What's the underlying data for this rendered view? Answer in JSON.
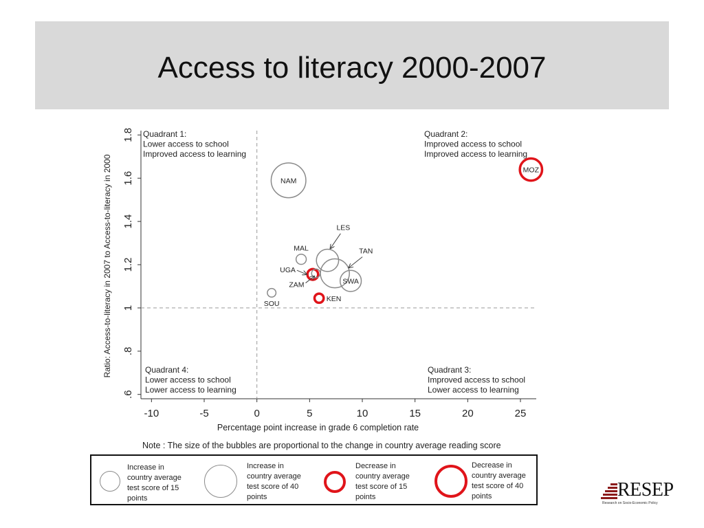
{
  "page": {
    "title": "Access to literacy 2000-2007"
  },
  "colors": {
    "gray_bubble": "#8a8a8a",
    "red_bubble": "#e0141a",
    "axis": "#333333",
    "reference_line": "#9a9a9a",
    "title_bar": "#d9d9d9"
  },
  "chart_data": {
    "type": "scatter",
    "xlabel": "Percentage point increase in grade 6 completion rate",
    "ylabel": "Ratio: Access-to-literacy in 2007 to Access-to-literacy in 2000",
    "xlim": [
      -11,
      26.5
    ],
    "ylim": [
      0.58,
      1.82
    ],
    "x_ticks": [
      -10,
      -5,
      0,
      5,
      10,
      15,
      20,
      25
    ],
    "x_tick_labels": [
      "-10",
      "-5",
      "0",
      "5",
      "10",
      "15",
      "20",
      "25"
    ],
    "y_ticks": [
      0.6,
      0.8,
      1,
      1.2,
      1.4,
      1.6,
      1.8
    ],
    "y_tick_labels": [
      ".6",
      ".8",
      "1",
      "1.2",
      "1.4",
      "1.6",
      "1.8"
    ],
    "reference_lines": {
      "x": 0,
      "y": 1
    },
    "grid": false,
    "quadrants": [
      {
        "lines": [
          "Quadrant 1:",
          "Lower access to school",
          "Improved access to learning"
        ],
        "position": "top-left"
      },
      {
        "lines": [
          "Quadrant 2:",
          "Improved access to school",
          "Improved access to learning"
        ],
        "position": "top-right"
      },
      {
        "lines": [
          "Quadrant 4:",
          "Lower access to school",
          "Lower access to learning"
        ],
        "position": "bottom-left"
      },
      {
        "lines": [
          "Quadrant 3:",
          "Improved access to school",
          "Lower access to learning"
        ],
        "position": "bottom-right"
      }
    ],
    "points": [
      {
        "label": "NAM",
        "x": 3.0,
        "y": 1.59,
        "score_change": 56,
        "direction": "increase",
        "label_pos": "center"
      },
      {
        "label": "MOZ",
        "x": 26.0,
        "y": 1.64,
        "score_change": -32,
        "direction": "decrease",
        "label_pos": "center"
      },
      {
        "label": "MAL",
        "x": 4.2,
        "y": 1.225,
        "score_change": 9,
        "direction": "increase",
        "label_pos": "above"
      },
      {
        "label": "LES",
        "x": 6.7,
        "y": 1.22,
        "score_change": 32,
        "direction": "increase",
        "label_pos": "arrow-above"
      },
      {
        "label": "TAN",
        "x": 7.4,
        "y": 1.16,
        "score_change": 45,
        "direction": "increase",
        "label_pos": "arrow-upper-right"
      },
      {
        "label": "SWA",
        "x": 8.9,
        "y": 1.125,
        "score_change": 30,
        "direction": "increase",
        "label_pos": "center"
      },
      {
        "label": "UGA",
        "x": 5.3,
        "y": 1.155,
        "score_change": -10,
        "direction": "decrease",
        "label_pos": "arrow-left"
      },
      {
        "label": "ZAM",
        "x": 5.6,
        "y": 1.16,
        "score_change": 6,
        "direction": "increase",
        "label_pos": "arrow-lower-left"
      },
      {
        "label": "SOU",
        "x": 1.4,
        "y": 1.07,
        "score_change": 6,
        "direction": "increase",
        "label_pos": "below"
      },
      {
        "label": "KEN",
        "x": 5.9,
        "y": 1.045,
        "score_change": -7,
        "direction": "decrease",
        "label_pos": "right"
      }
    ],
    "note": "Note : The size of the bubbles are proportional to the change in country average reading score"
  },
  "legend": {
    "items": [
      {
        "text": "Increase in\ncountry average\ntest score of 15\npoints",
        "kind": "increase-15"
      },
      {
        "text": "Increase in\ncountry average\ntest score of 40\npoints",
        "kind": "increase-40"
      },
      {
        "text": "Decrease in\ncountry average\ntest score of 15\npoints",
        "kind": "decrease-15"
      },
      {
        "text": "Decrease in\ncountry average\ntest score of 40\npoints",
        "kind": "decrease-40"
      }
    ]
  },
  "logo": {
    "word": "RESEP",
    "tagline": "Research on Socio-Economic Policy"
  }
}
